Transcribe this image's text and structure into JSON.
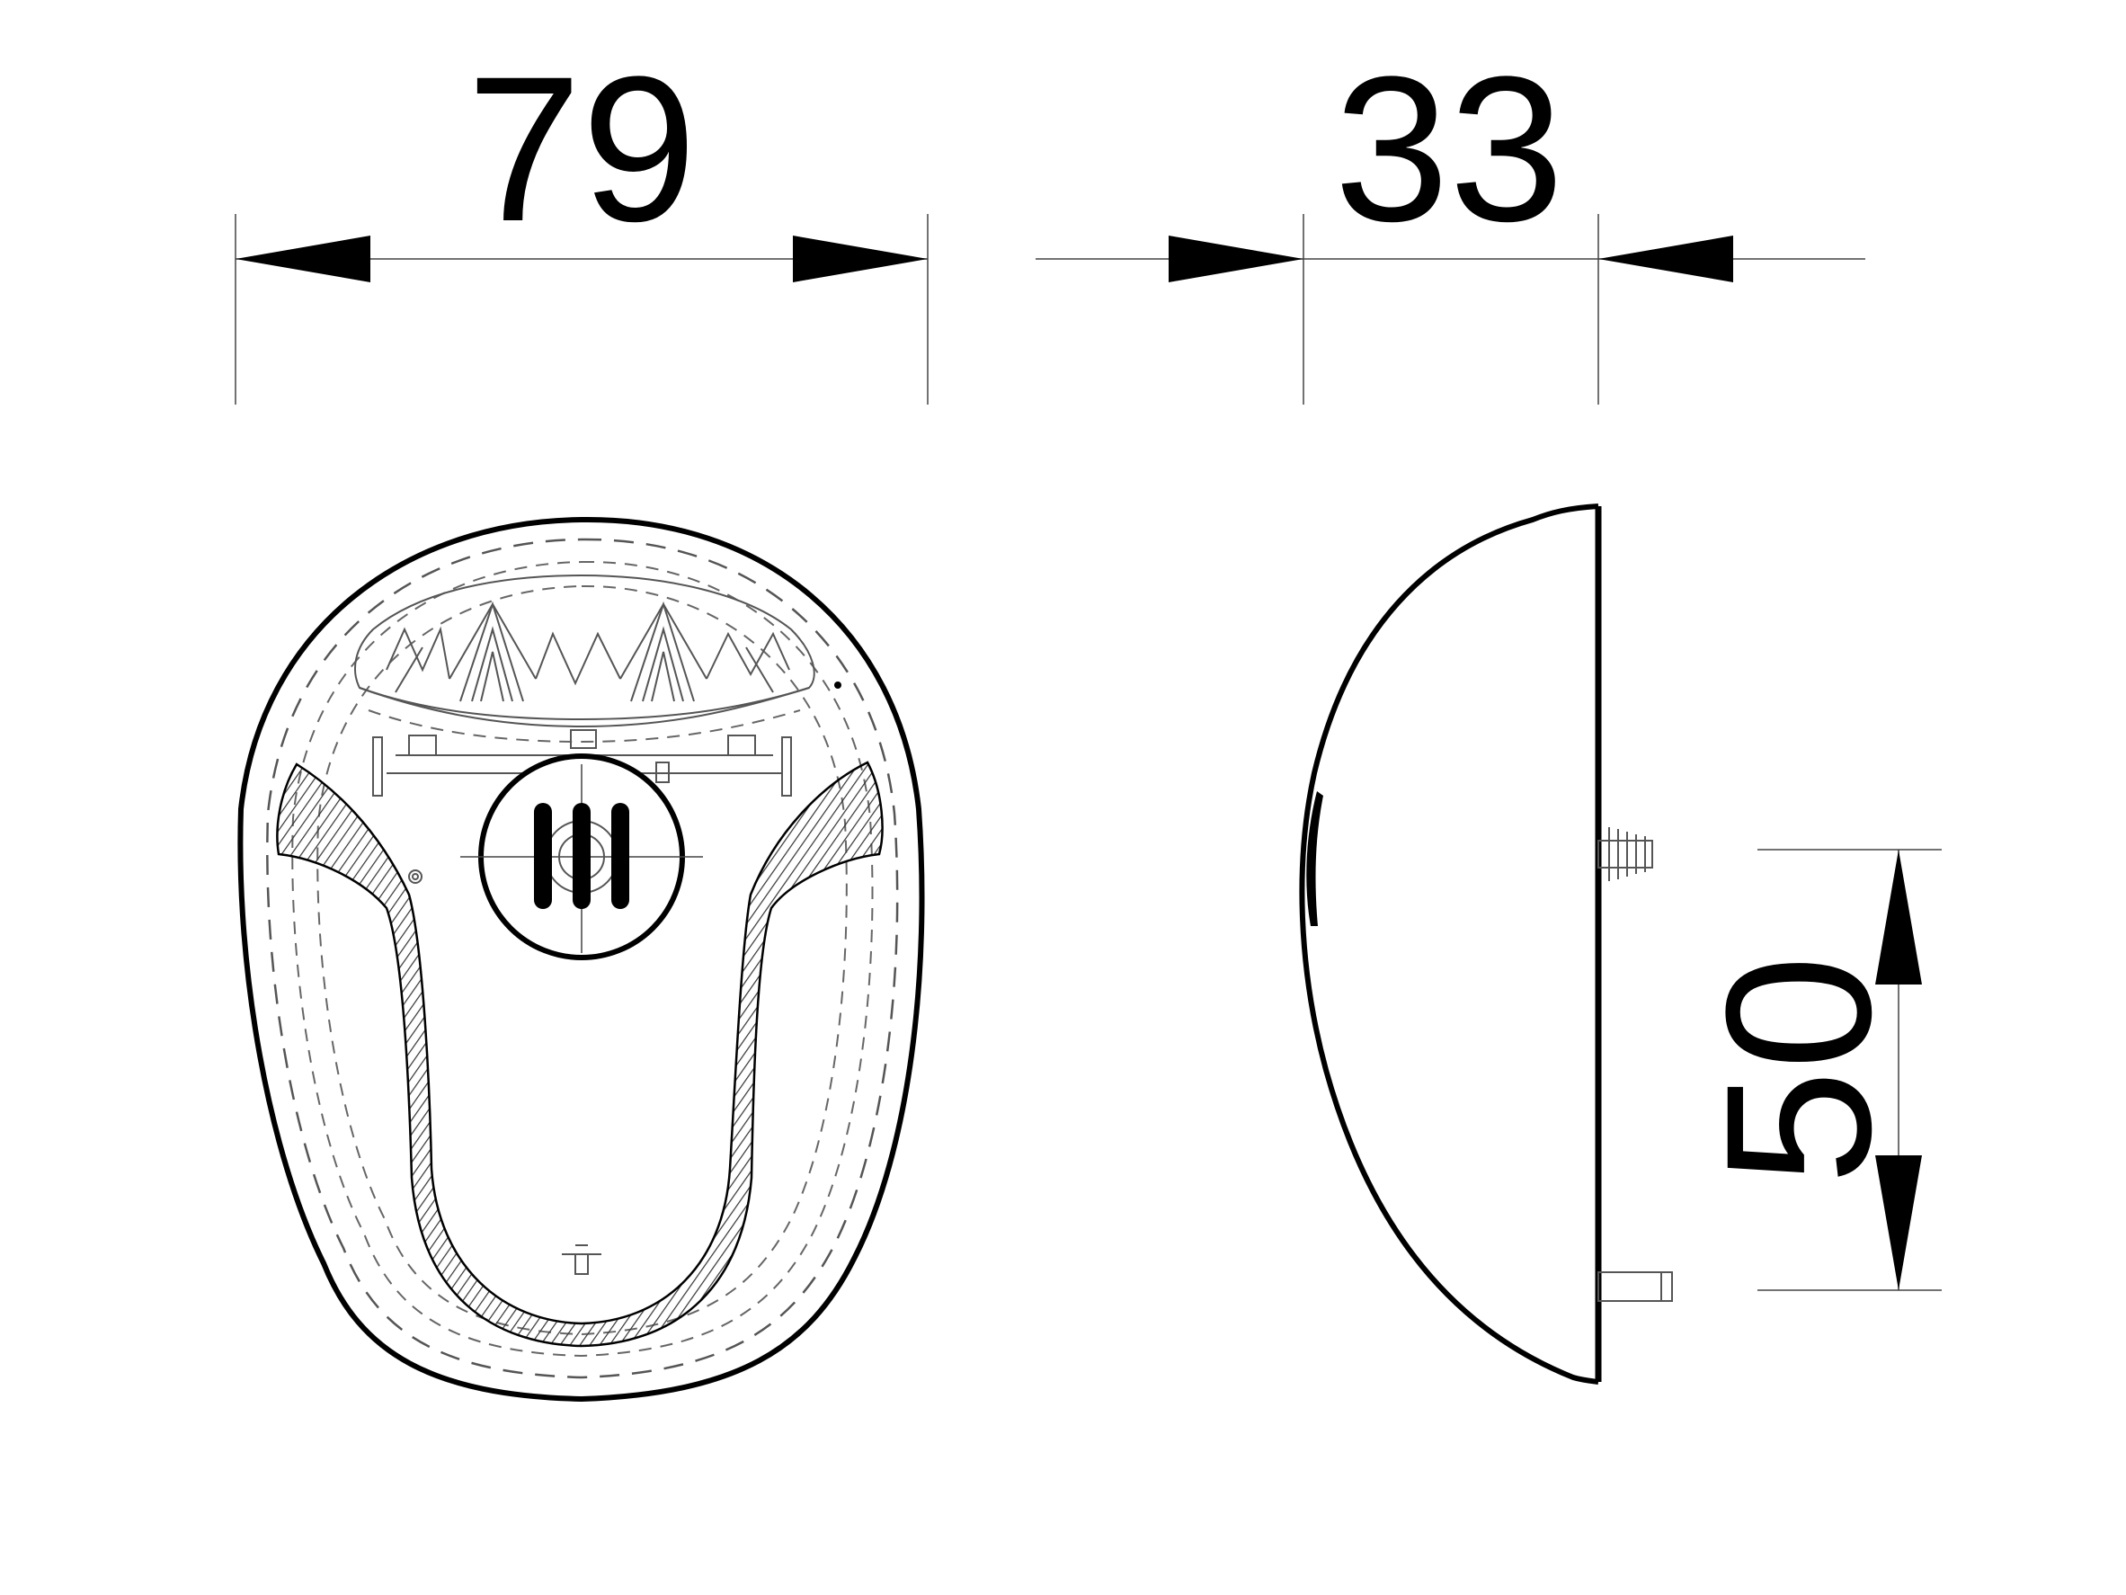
{
  "dimensions": {
    "width": "79",
    "depth": "33",
    "height": "50"
  },
  "colors": {
    "line": "#000000",
    "extension_line": "#444444",
    "hatch": "#333333",
    "background": "#ffffff"
  }
}
